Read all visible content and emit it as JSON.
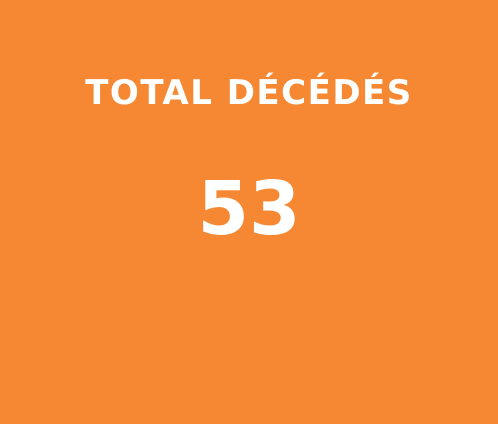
{
  "card": {
    "label": "TOTAL DÉCÉDÉS",
    "value": "53",
    "background_color": "#F68833",
    "text_color": "#FFFFFF"
  }
}
